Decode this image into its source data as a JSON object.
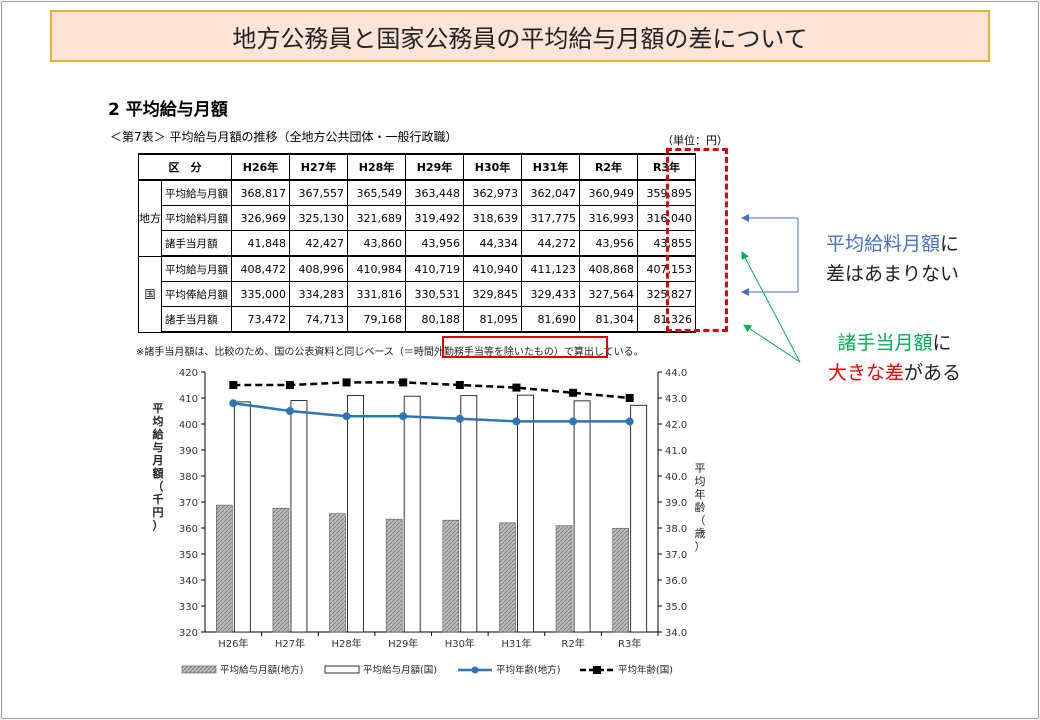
{
  "banner": {
    "title": "地方公務員と国家公務員の平均給与月額の差について"
  },
  "section": {
    "title": "2  平均給与月額"
  },
  "table": {
    "caption": "＜第7表＞  平均給与月額の推移（全地方公共団体・一般行政職）",
    "unit": "（単位：円）",
    "corner": "区　分",
    "years": [
      "H26年",
      "H27年",
      "H28年",
      "H29年",
      "H30年",
      "H31年",
      "R2年",
      "R3年"
    ],
    "groups": [
      {
        "name": "地方",
        "rows": [
          {
            "label": "平均給与月額",
            "values": [
              "368,817",
              "367,557",
              "365,549",
              "363,448",
              "362,973",
              "362,047",
              "360,949",
              "359,895"
            ]
          },
          {
            "label": "平均給料月額",
            "values": [
              "326,969",
              "325,130",
              "321,689",
              "319,492",
              "318,639",
              "317,775",
              "316,993",
              "316,040"
            ]
          },
          {
            "label": "諸手当月額",
            "values": [
              "41,848",
              "42,427",
              "43,860",
              "43,956",
              "44,334",
              "44,272",
              "43,956",
              "43,855"
            ]
          }
        ]
      },
      {
        "name": "国",
        "rows": [
          {
            "label": "平均給与月額",
            "values": [
              "408,472",
              "408,996",
              "410,984",
              "410,719",
              "410,940",
              "411,123",
              "408,868",
              "407,153"
            ]
          },
          {
            "label": "平均俸給月額",
            "values": [
              "335,000",
              "334,283",
              "331,816",
              "330,531",
              "329,845",
              "329,433",
              "327,564",
              "325,827"
            ]
          },
          {
            "label": "諸手当月額",
            "values": [
              "73,472",
              "74,713",
              "79,168",
              "80,188",
              "81,095",
              "81,690",
              "81,304",
              "81,326"
            ]
          }
        ]
      }
    ],
    "note": "※諸手当月額は、比較のため、国の公表資料と同じベース（＝時間外勤務手当等を除いたもの）で算出している。"
  },
  "annotations": {
    "salary_1": "平均給料月額",
    "salary_2": "に",
    "salary_3": "差はあまりない",
    "allow_1": "諸手当月額",
    "allow_2": "に",
    "allow_3": "大きな差",
    "allow_4": "がある"
  },
  "colors": {
    "blue": "#4472c4",
    "green": "#00b050",
    "red": "#ff0000",
    "line_local": "#2e75b6",
    "bar_local": "#a6a6a6"
  },
  "chart_data": {
    "type": "bar",
    "categories": [
      "H26年",
      "H27年",
      "H28年",
      "H29年",
      "H30年",
      "H31年",
      "R2年",
      "R3年"
    ],
    "series": [
      {
        "name": "平均給与月額(地方)",
        "kind": "bar",
        "axis": "left",
        "values": [
          368.8,
          367.6,
          365.5,
          363.4,
          363.0,
          362.0,
          360.9,
          359.9
        ]
      },
      {
        "name": "平均給与月額(国)",
        "kind": "bar",
        "axis": "left",
        "values": [
          408.5,
          409.0,
          411.0,
          410.7,
          410.9,
          411.1,
          408.9,
          407.2
        ]
      },
      {
        "name": "平均年齢(地方)",
        "kind": "line",
        "axis": "right",
        "values": [
          42.8,
          42.5,
          42.3,
          42.3,
          42.2,
          42.1,
          42.1,
          42.1
        ]
      },
      {
        "name": "平均年齢(国)",
        "kind": "line",
        "axis": "right",
        "values": [
          43.5,
          43.5,
          43.6,
          43.6,
          43.5,
          43.4,
          43.2,
          43.0
        ]
      }
    ],
    "ylabel": "平均給与月額（千円）",
    "y2label": "平均年齢（歳）",
    "ylim": [
      320,
      420
    ],
    "y2lim": [
      34.0,
      44.0
    ],
    "yticks": [
      320,
      330,
      340,
      350,
      360,
      370,
      380,
      390,
      400,
      410,
      420
    ],
    "y2ticks": [
      "34.0",
      "35.0",
      "36.0",
      "37.0",
      "38.0",
      "39.0",
      "40.0",
      "41.0",
      "42.0",
      "43.0",
      "44.0"
    ],
    "legend_position": "bottom"
  }
}
